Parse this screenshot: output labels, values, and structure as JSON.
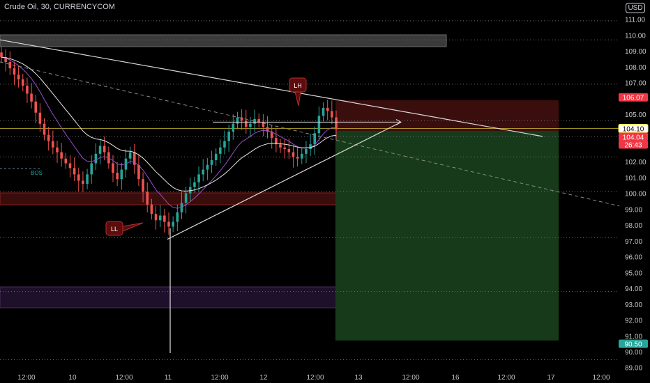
{
  "header": {
    "title": "Crude Oil, 30, CURRENCYCOM",
    "currency": "USD"
  },
  "chart_data": {
    "type": "candlestick",
    "ylim": [
      88.9,
      111.6
    ],
    "y_ticks": [
      89,
      90,
      91,
      92,
      93,
      94,
      95,
      96,
      97,
      98,
      99,
      100,
      101,
      102,
      103,
      104,
      105,
      106,
      107,
      108,
      109,
      110,
      111
    ],
    "y_tick_labels": [
      "89.00",
      "90.00",
      "91.00",
      "92.00",
      "93.00",
      "94.00",
      "95.00",
      "96.00",
      "97.00",
      "98.00",
      "99.00",
      "100.00",
      "101.00",
      "102.00",
      "103.00",
      "104.00",
      "105.00",
      "106.00",
      "107.00",
      "108.00",
      "109.00",
      "110.00",
      "111.00"
    ],
    "x_labels": [
      "12:00",
      "10",
      "12:00",
      "11",
      "12:00",
      "12",
      "12:00",
      "13",
      "12:00",
      "16",
      "12:00",
      "17",
      "12:00"
    ],
    "price_tags": [
      {
        "label": "106.07",
        "value": 106.07,
        "color": "#f23645"
      },
      {
        "label": "104.10",
        "value": 104.1,
        "color": "#ffeb3b"
      },
      {
        "label": "104.04",
        "value": 104.04,
        "color": "#f23645"
      },
      {
        "label": "26:43",
        "value": 103.6,
        "color": "#f23645"
      },
      {
        "label": "90.50",
        "value": 90.5,
        "color": "#26a69a"
      }
    ],
    "annotations": {
      "lower_low": "LL",
      "lower_high": "LH",
      "bos": "BOS"
    },
    "candle_closes": [
      108.6,
      108.3,
      107.9,
      107.5,
      107.2,
      106.8,
      106.3,
      105.8,
      105.1,
      104.4,
      103.7,
      103.3,
      102.9,
      102.6,
      102.2,
      101.9,
      101.6,
      101.2,
      100.8,
      100.6,
      101.2,
      101.9,
      102.5,
      103.0,
      102.6,
      101.9,
      101.3,
      100.9,
      101.5,
      102.2,
      102.6,
      101.8,
      100.9,
      100.1,
      99.3,
      98.7,
      98.3,
      98.6,
      98.2,
      97.9,
      98.2,
      98.8,
      99.4,
      100.0,
      100.4,
      100.7,
      101.2,
      101.5,
      101.8,
      102.1,
      102.5,
      102.9,
      103.3,
      103.9,
      104.4,
      104.8,
      104.6,
      104.2,
      104.4,
      104.7,
      104.5,
      104.2,
      103.9,
      103.5,
      103.1,
      102.9,
      102.8,
      102.6,
      102.3,
      102.2,
      102.5,
      102.8,
      103.1,
      103.8,
      104.9,
      105.4,
      105.2,
      104.8,
      104.04
    ],
    "level_lines": [
      110.9,
      109.7,
      106.9,
      104.6,
      103.6,
      102.3,
      100.1,
      97.2,
      93.8,
      89.5
    ]
  }
}
